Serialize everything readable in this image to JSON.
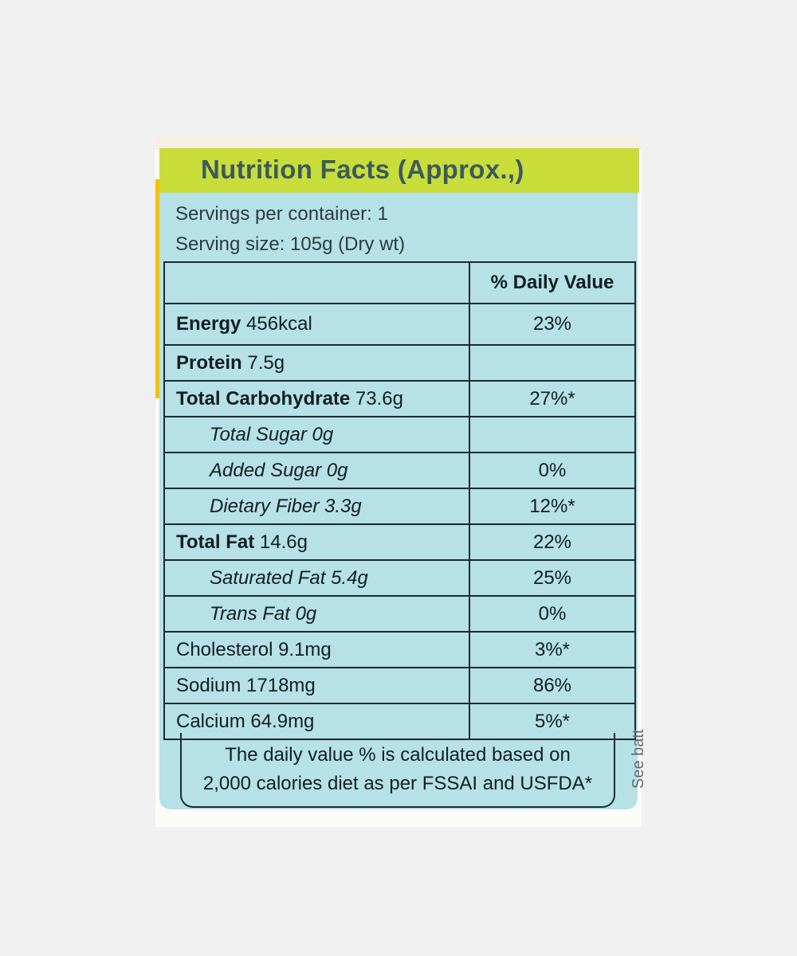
{
  "label": {
    "title": "Nutrition Facts (Approx.,)",
    "servings_per_container": "Servings per container: 1",
    "serving_size": "Serving size: 105g (Dry wt)",
    "dv_header": "% Daily Value",
    "rows": [
      {
        "name": "Energy",
        "amount": "456kcal",
        "dv": "23%"
      },
      {
        "name": "Protein",
        "amount": "7.5g",
        "dv": ""
      },
      {
        "name": "Total Carbohydrate",
        "amount": "73.6g",
        "dv": "27%*"
      },
      {
        "name": "Total Sugar 0g",
        "dv": ""
      },
      {
        "name": "Added Sugar 0g",
        "dv": "0%"
      },
      {
        "name": "Dietary Fiber 3.3g",
        "dv": "12%*"
      },
      {
        "name": "Total Fat",
        "amount": "14.6g",
        "dv": "22%"
      },
      {
        "name": "Saturated Fat 5.4g",
        "dv": "25%"
      },
      {
        "name": "Trans Fat 0g",
        "dv": "0%"
      },
      {
        "name": "Cholesterol 9.1mg",
        "dv": "3%*"
      },
      {
        "name": "Sodium 1718mg",
        "dv": "86%"
      },
      {
        "name": "Calcium 64.9mg",
        "dv": "5%*"
      }
    ],
    "footnote_line1": "The daily value % is calculated based on",
    "footnote_line2": "2,000 calories diet as per FSSAI and USFDA*"
  },
  "side_text": "See batt"
}
